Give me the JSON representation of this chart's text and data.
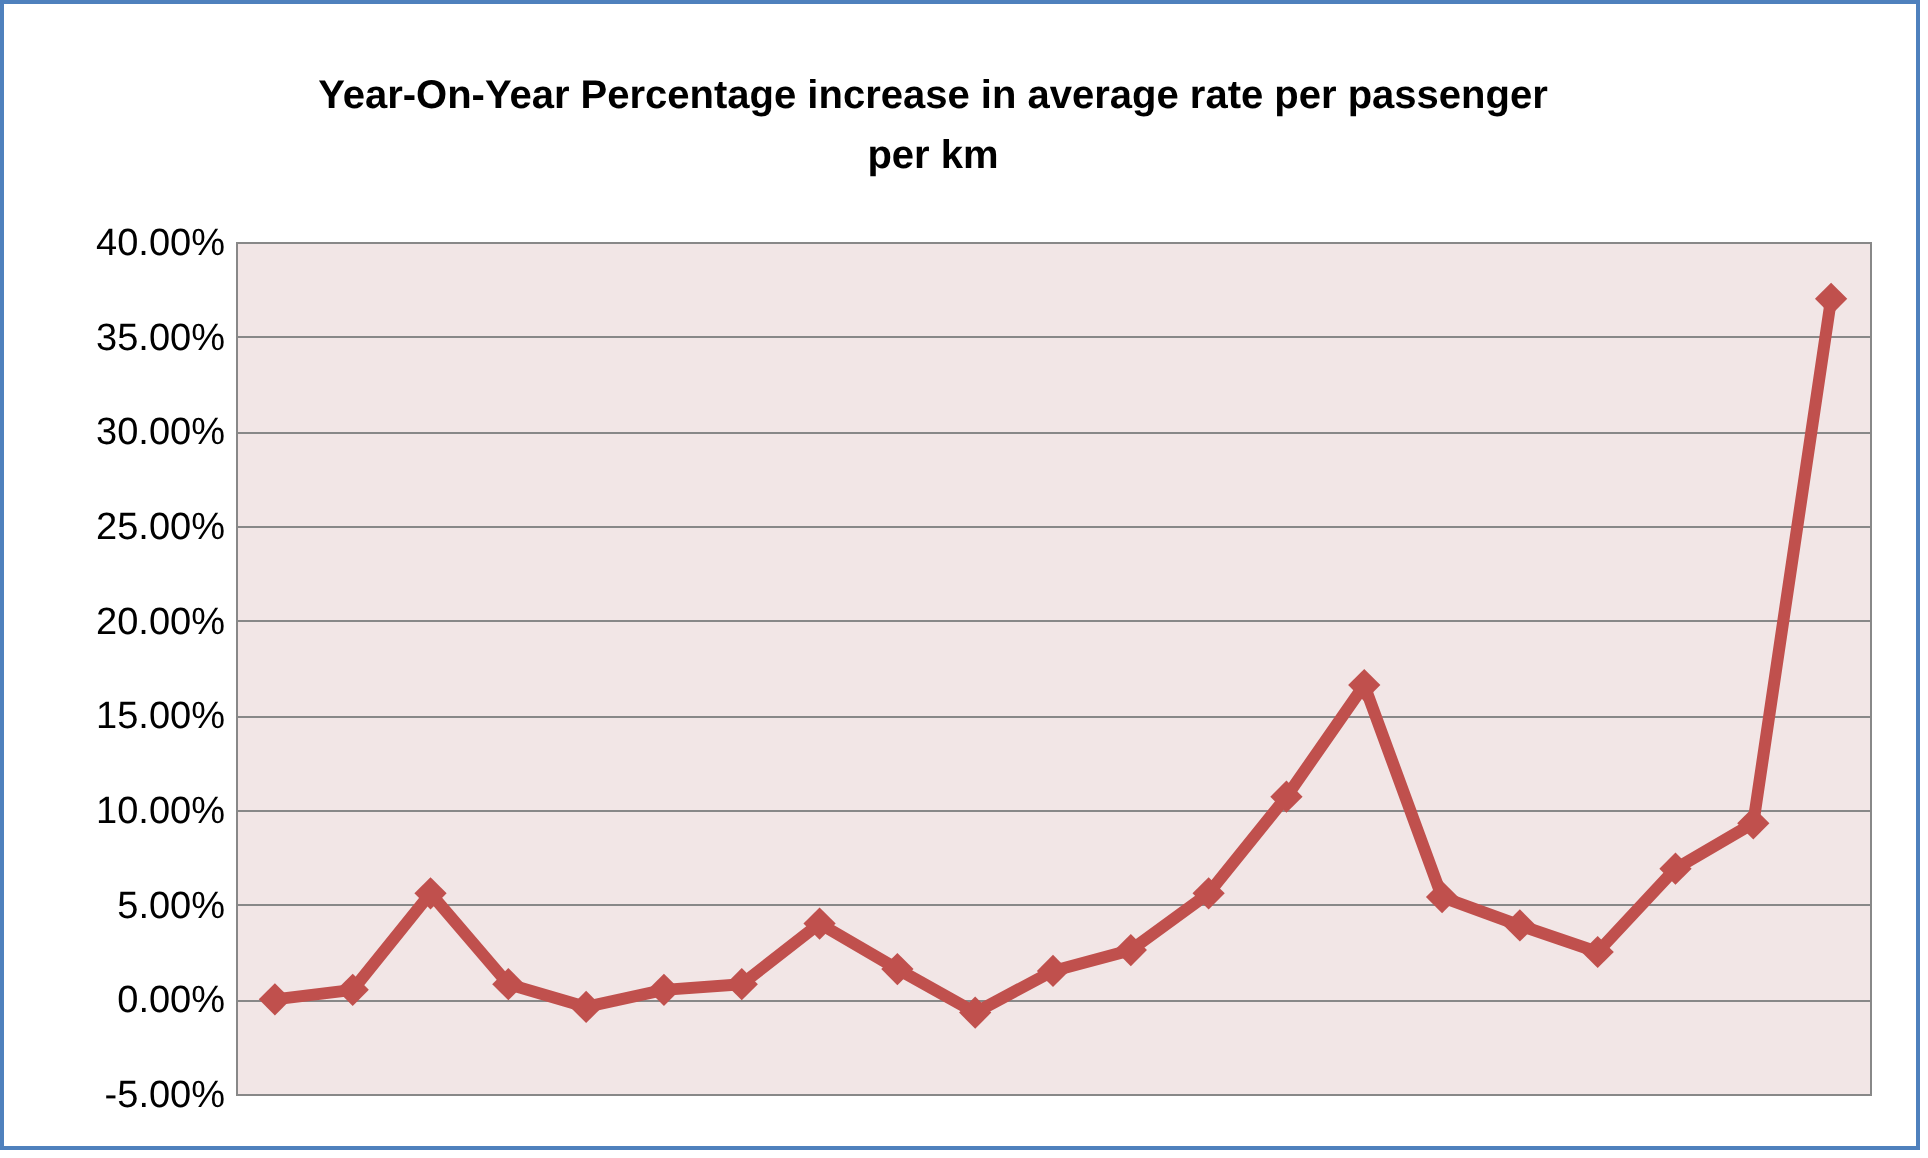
{
  "chart_data": {
    "type": "line",
    "title": "Year-On-Year Percentage increase in average rate per passenger per km",
    "categories": [
      null,
      null,
      null,
      null,
      null,
      null,
      null,
      null,
      null,
      null,
      null,
      null,
      null,
      null,
      null,
      null,
      null,
      null,
      null,
      null,
      null
    ],
    "series": [
      {
        "color": "#c0504d",
        "values": [
          0.0,
          0.5,
          5.6,
          0.8,
          -0.4,
          0.5,
          0.8,
          4.0,
          1.6,
          -0.7,
          1.5,
          2.6,
          5.6,
          10.7,
          16.6,
          5.4,
          3.9,
          2.5,
          6.9,
          9.3,
          37.0
        ]
      }
    ],
    "ylim": [
      -5,
      40
    ],
    "yticks": [
      {
        "value": -5,
        "label": "-5.00%"
      },
      {
        "value": 0,
        "label": "0.00%"
      },
      {
        "value": 5,
        "label": "5.00%"
      },
      {
        "value": 10,
        "label": "10.00%"
      },
      {
        "value": 15,
        "label": "15.00%"
      },
      {
        "value": 20,
        "label": "20.00%"
      },
      {
        "value": 25,
        "label": "25.00%"
      },
      {
        "value": 30,
        "label": "30.00%"
      },
      {
        "value": 35,
        "label": "35.00%"
      },
      {
        "value": 40,
        "label": "40.00%"
      }
    ],
    "grid": "y",
    "tick_labels": "y",
    "marker": "diamond",
    "line_style": "solid",
    "legend": false
  }
}
